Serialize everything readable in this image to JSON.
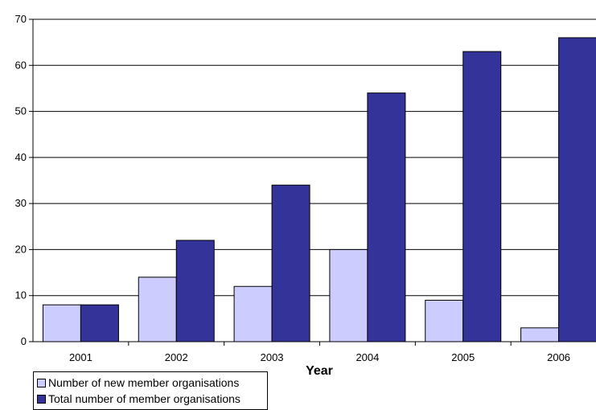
{
  "chart_data": {
    "type": "bar",
    "categories": [
      "2001",
      "2002",
      "2003",
      "2004",
      "2005",
      "2006"
    ],
    "series": [
      {
        "name": "Number of new member organisations",
        "values": [
          8,
          14,
          12,
          20,
          9,
          3
        ],
        "color": "#ccccff"
      },
      {
        "name": "Total number of member organisations",
        "values": [
          8,
          22,
          34,
          54,
          63,
          66
        ],
        "color": "#333399"
      }
    ],
    "xlabel": "Year",
    "ylabel": "",
    "ylim": [
      0,
      70
    ],
    "yticks": [
      "0",
      "10",
      "20",
      "30",
      "40",
      "50",
      "60",
      "70"
    ],
    "grid": true,
    "legend_position": "bottom-left"
  }
}
